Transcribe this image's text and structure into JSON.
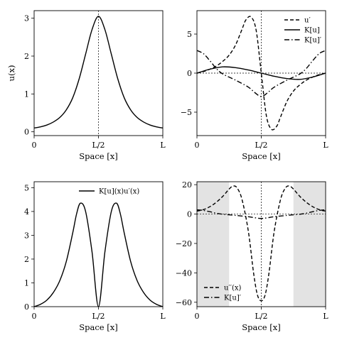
{
  "chart_data": [
    {
      "type": "line",
      "panel": "top-left",
      "xlabel": "Space [x]",
      "ylabel": "u(x)",
      "xticks": [
        "0",
        "L/2",
        "L"
      ],
      "yticks": [
        "0",
        "1",
        "2",
        "3"
      ],
      "xlim": [
        0,
        1
      ],
      "ylim": [
        -0.1,
        3.2
      ],
      "vline": 0.5,
      "series": [
        {
          "x": [
            0.0,
            0.05,
            0.1,
            0.15,
            0.2,
            0.25,
            0.3,
            0.35,
            0.4,
            0.45,
            0.5,
            0.55,
            0.6,
            0.65,
            0.7,
            0.75,
            0.8,
            0.85,
            0.9,
            0.95,
            1.0
          ],
          "values": [
            0.1,
            0.13,
            0.18,
            0.26,
            0.38,
            0.58,
            0.9,
            1.4,
            2.05,
            2.7,
            3.05,
            2.7,
            2.05,
            1.4,
            0.9,
            0.58,
            0.38,
            0.26,
            0.18,
            0.13,
            0.1
          ],
          "style": "solid"
        }
      ]
    },
    {
      "type": "line",
      "panel": "top-right",
      "xlabel": "Space [x]",
      "xticks": [
        "0",
        "L/2",
        "L"
      ],
      "yticks": [
        "−5",
        "0",
        "5"
      ],
      "xlim": [
        0,
        1
      ],
      "ylim": [
        -8,
        8
      ],
      "vline": 0.5,
      "hline": 0,
      "legend_position": "top-right",
      "series": [
        {
          "name": "u′",
          "style": "dashed",
          "x": [
            0.0,
            0.05,
            0.1,
            0.15,
            0.2,
            0.25,
            0.3,
            0.35,
            0.38,
            0.42,
            0.46,
            0.5,
            0.54,
            0.58,
            0.62,
            0.65,
            0.7,
            0.75,
            0.8,
            0.85,
            0.9,
            0.95,
            1.0
          ],
          "values": [
            0.0,
            0.2,
            0.5,
            0.9,
            1.5,
            2.3,
            3.6,
            5.6,
            6.8,
            7.2,
            5.5,
            0.0,
            -5.5,
            -7.2,
            -6.8,
            -5.6,
            -3.6,
            -2.3,
            -1.5,
            -0.9,
            -0.5,
            -0.2,
            0.0
          ]
        },
        {
          "name": "K[u]",
          "style": "solid",
          "x": [
            0.0,
            0.1,
            0.2,
            0.3,
            0.4,
            0.5,
            0.6,
            0.7,
            0.8,
            0.9,
            1.0
          ],
          "values": [
            0.0,
            0.5,
            0.8,
            0.7,
            0.4,
            0.0,
            -0.4,
            -0.7,
            -0.8,
            -0.5,
            0.0
          ]
        },
        {
          "name": "K[u]′",
          "style": "dashdot",
          "x": [
            0.0,
            0.05,
            0.1,
            0.15,
            0.2,
            0.3,
            0.4,
            0.45,
            0.5,
            0.55,
            0.6,
            0.7,
            0.8,
            0.85,
            0.9,
            0.95,
            1.0
          ],
          "values": [
            2.9,
            2.5,
            1.6,
            0.6,
            -0.1,
            -0.9,
            -1.8,
            -2.5,
            -3.0,
            -2.5,
            -1.8,
            -0.9,
            -0.1,
            0.6,
            1.6,
            2.5,
            2.9
          ]
        }
      ]
    },
    {
      "type": "line",
      "panel": "bottom-left",
      "xlabel": "Space [x]",
      "xticks": [
        "0",
        "L/2",
        "L"
      ],
      "yticks": [
        "0",
        "1",
        "2",
        "3",
        "4",
        "5"
      ],
      "xlim": [
        0,
        1
      ],
      "ylim": [
        0,
        5.25
      ],
      "legend_position": "top-right",
      "series": [
        {
          "name": "K[u](x)u′(x)",
          "style": "solid",
          "x": [
            0.0,
            0.05,
            0.1,
            0.15,
            0.2,
            0.25,
            0.3,
            0.33,
            0.36,
            0.4,
            0.45,
            0.5,
            0.55,
            0.6,
            0.64,
            0.67,
            0.7,
            0.75,
            0.8,
            0.85,
            0.9,
            0.95,
            1.0
          ],
          "values": [
            0.0,
            0.1,
            0.28,
            0.6,
            1.1,
            1.9,
            3.1,
            3.9,
            4.35,
            4.0,
            2.3,
            0.0,
            2.3,
            4.0,
            4.35,
            3.9,
            3.1,
            1.9,
            1.1,
            0.6,
            0.28,
            0.1,
            0.0
          ]
        }
      ]
    },
    {
      "type": "line",
      "panel": "bottom-right",
      "xlabel": "Space [x]",
      "xticks": [
        "0",
        "L/2",
        "L"
      ],
      "yticks": [
        "−60",
        "−40",
        "−20",
        "0",
        "20"
      ],
      "xlim": [
        0,
        1
      ],
      "ylim": [
        -63,
        22
      ],
      "vline": 0.5,
      "hline": 0,
      "shaded_x": [
        [
          0,
          0.25
        ],
        [
          0.75,
          1
        ]
      ],
      "legend_position": "bottom-left",
      "series": [
        {
          "name": "u′′(x)",
          "style": "dashed",
          "x": [
            0.0,
            0.05,
            0.1,
            0.15,
            0.2,
            0.25,
            0.28,
            0.31,
            0.35,
            0.4,
            0.44,
            0.47,
            0.5,
            0.53,
            0.56,
            0.6,
            0.65,
            0.69,
            0.72,
            0.75,
            0.8,
            0.85,
            0.9,
            0.95,
            1.0
          ],
          "values": [
            2,
            3,
            5,
            8,
            12,
            17,
            19,
            18,
            10,
            -12,
            -40,
            -55,
            -59,
            -55,
            -40,
            -12,
            10,
            18,
            19,
            17,
            12,
            8,
            5,
            3,
            2
          ]
        },
        {
          "name": "K[u]′",
          "style": "dashdot",
          "x": [
            0.0,
            0.05,
            0.1,
            0.15,
            0.2,
            0.3,
            0.4,
            0.45,
            0.5,
            0.55,
            0.6,
            0.7,
            0.8,
            0.85,
            0.9,
            0.95,
            1.0
          ],
          "values": [
            2.9,
            2.5,
            1.6,
            0.6,
            -0.1,
            -0.9,
            -1.8,
            -2.5,
            -3.0,
            -2.5,
            -1.8,
            -0.9,
            -0.1,
            0.6,
            1.6,
            2.5,
            2.9
          ]
        }
      ]
    }
  ]
}
